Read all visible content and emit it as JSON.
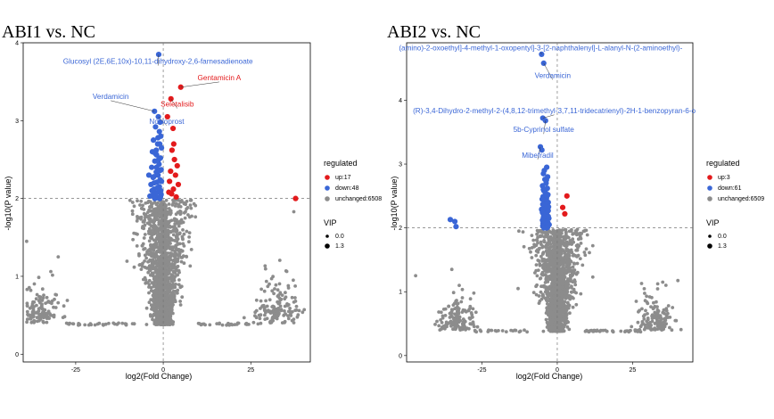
{
  "colors": {
    "up": "#e31a1c",
    "down": "#3a66d6",
    "unchanged": "#8c8c8c",
    "label_down": "#3a66d6",
    "label_up": "#e31a1c"
  },
  "chart_data": [
    {
      "type": "scatter",
      "title": "ABI1 vs. NC",
      "xlabel": "log2(Fold Change)",
      "ylabel": "-log10(P value)",
      "xlim": [
        -40,
        42
      ],
      "ylim": [
        -0.1,
        4.0
      ],
      "x_ticks": [
        -25,
        0,
        25
      ],
      "y_ticks": [
        0,
        1,
        2,
        3,
        4
      ],
      "threshold_y": 2,
      "threshold_x": 0,
      "legend": {
        "regulated_title": "regulated",
        "entries": [
          {
            "key": "up",
            "label": "up:17"
          },
          {
            "key": "down",
            "label": "down:48"
          },
          {
            "key": "unchanged",
            "label": "unchanged:6508"
          }
        ],
        "vip_title": "VIP",
        "vip_entries": [
          "0.0",
          "1.3"
        ]
      },
      "up_points": [
        [
          5,
          3.43
        ],
        [
          2.2,
          3.28
        ],
        [
          2.8,
          2.9
        ],
        [
          1.2,
          3.05
        ],
        [
          3,
          2.7
        ],
        [
          2.5,
          2.62
        ],
        [
          3.2,
          2.5
        ],
        [
          4,
          2.42
        ],
        [
          2.1,
          2.35
        ],
        [
          3.5,
          2.3
        ],
        [
          1.8,
          2.22
        ],
        [
          4.3,
          2.18
        ],
        [
          2.9,
          2.12
        ],
        [
          1.6,
          2.08
        ],
        [
          3.7,
          2.02
        ],
        [
          37.8,
          2.0
        ],
        [
          2.4,
          2.06
        ]
      ],
      "down_points": [
        [
          -1.3,
          3.85
        ],
        [
          -2.5,
          3.12
        ],
        [
          -1.4,
          3.05
        ],
        [
          -0.9,
          2.98
        ],
        [
          -2.2,
          2.92
        ],
        [
          -1.1,
          2.86
        ],
        [
          -0.7,
          2.8
        ],
        [
          -2.8,
          2.75
        ],
        [
          -1.6,
          2.7
        ],
        [
          -0.5,
          2.65
        ],
        [
          -3.1,
          2.6
        ],
        [
          -1.9,
          2.56
        ],
        [
          -0.8,
          2.52
        ],
        [
          -2.4,
          2.48
        ],
        [
          -1.2,
          2.44
        ],
        [
          -3.3,
          2.4
        ],
        [
          -0.6,
          2.37
        ],
        [
          -2.0,
          2.34
        ],
        [
          -1.5,
          2.3
        ],
        [
          -2.9,
          2.27
        ],
        [
          -0.9,
          2.24
        ],
        [
          -1.8,
          2.21
        ],
        [
          -3.5,
          2.18
        ],
        [
          -1.1,
          2.15
        ],
        [
          -2.6,
          2.12
        ],
        [
          -0.7,
          2.1
        ],
        [
          -1.4,
          2.08
        ],
        [
          -2.2,
          2.06
        ],
        [
          -3.0,
          2.04
        ],
        [
          -0.8,
          2.02
        ],
        [
          -1.7,
          2.01
        ],
        [
          -2.4,
          2.0
        ],
        [
          -1.0,
          2.0
        ],
        [
          -3.8,
          2.03
        ],
        [
          -0.5,
          2.22
        ],
        [
          -1.3,
          2.5
        ],
        [
          -2.0,
          2.62
        ],
        [
          -2.7,
          2.28
        ],
        [
          -0.9,
          2.36
        ],
        [
          -1.6,
          2.14
        ],
        [
          -3.2,
          2.1
        ],
        [
          -2.3,
          2.58
        ],
        [
          -1.5,
          2.78
        ],
        [
          -1.0,
          2.7
        ],
        [
          -4.1,
          2.3
        ],
        [
          -0.6,
          2.05
        ],
        [
          -1.9,
          2.4
        ],
        [
          -2.6,
          2.2
        ]
      ],
      "labels": [
        {
          "text": "Glucosyl (2E,6E,10x)-10,11-dihydroxy-2,6-farnesadienoate",
          "color": "down",
          "point": [
            -1.3,
            3.85
          ],
          "anchor": [
            -1.5,
            3.73
          ]
        },
        {
          "text": "Gentamicin A",
          "color": "up",
          "point": [
            5,
            3.43
          ],
          "anchor": [
            16,
            3.52
          ]
        },
        {
          "text": "Verdamicin",
          "color": "down",
          "point": [
            -2.5,
            3.12
          ],
          "anchor": [
            -15,
            3.28
          ]
        },
        {
          "text": "Seletalisib",
          "color": "up",
          "point": [
            2.2,
            3.28
          ],
          "anchor": [
            4,
            3.18
          ]
        },
        {
          "text": "Nocloprost",
          "color": "down",
          "point": [
            -1.4,
            3.05
          ],
          "anchor": [
            1,
            2.96
          ]
        }
      ]
    },
    {
      "type": "scatter",
      "title": "ABI2 vs. NC",
      "xlabel": "log2(Fold Change)",
      "ylabel": "-log10(P value)",
      "xlim": [
        -50,
        45
      ],
      "ylim": [
        -0.1,
        4.9
      ],
      "x_ticks": [
        -25,
        0,
        25
      ],
      "y_ticks": [
        0,
        1,
        2,
        3,
        4
      ],
      "threshold_y": 2,
      "threshold_x": 0,
      "legend": {
        "regulated_title": "regulated",
        "entries": [
          {
            "key": "up",
            "label": "up:3"
          },
          {
            "key": "down",
            "label": "down:61"
          },
          {
            "key": "unchanged",
            "label": "unchanged:6509"
          }
        ],
        "vip_title": "VIP",
        "vip_entries": [
          "0.0",
          "1.3"
        ]
      },
      "up_points": [
        [
          3.2,
          2.5
        ],
        [
          1.8,
          2.32
        ],
        [
          2.5,
          2.22
        ]
      ],
      "down_points": [
        [
          -5.2,
          4.72
        ],
        [
          -4.5,
          4.58
        ],
        [
          -4.8,
          3.72
        ],
        [
          -3.9,
          3.68
        ],
        [
          -5.6,
          3.27
        ],
        [
          -5.1,
          3.22
        ],
        [
          -3.5,
          2.95
        ],
        [
          -4.6,
          2.85
        ],
        [
          -3.2,
          2.8
        ],
        [
          -4.1,
          2.76
        ],
        [
          -3.7,
          2.7
        ],
        [
          -4.9,
          2.66
        ],
        [
          -3.3,
          2.62
        ],
        [
          -4.4,
          2.58
        ],
        [
          -3.9,
          2.55
        ],
        [
          -3.1,
          2.52
        ],
        [
          -4.7,
          2.49
        ],
        [
          -3.6,
          2.46
        ],
        [
          -4.2,
          2.43
        ],
        [
          -3.0,
          2.4
        ],
        [
          -4.8,
          2.37
        ],
        [
          -3.4,
          2.35
        ],
        [
          -4.0,
          2.32
        ],
        [
          -3.8,
          2.3
        ],
        [
          -4.5,
          2.28
        ],
        [
          -3.2,
          2.26
        ],
        [
          -4.9,
          2.24
        ],
        [
          -3.6,
          2.22
        ],
        [
          -4.1,
          2.2
        ],
        [
          -3.0,
          2.18
        ],
        [
          -4.6,
          2.16
        ],
        [
          -3.5,
          2.14
        ],
        [
          -4.3,
          2.12
        ],
        [
          -3.9,
          2.1
        ],
        [
          -3.1,
          2.08
        ],
        [
          -4.7,
          2.07
        ],
        [
          -3.7,
          2.06
        ],
        [
          -4.2,
          2.05
        ],
        [
          -3.3,
          2.04
        ],
        [
          -4.8,
          2.03
        ],
        [
          -3.8,
          2.02
        ],
        [
          -4.0,
          2.01
        ],
        [
          -3.5,
          2.0
        ],
        [
          -4.4,
          2.0
        ],
        [
          -3.2,
          2.01
        ],
        [
          -35.5,
          2.13
        ],
        [
          -34.0,
          2.1
        ],
        [
          -33.6,
          2.02
        ],
        [
          -5.0,
          2.45
        ],
        [
          -2.9,
          2.33
        ],
        [
          -3.4,
          2.5
        ],
        [
          -4.6,
          2.6
        ],
        [
          -3.0,
          2.27
        ],
        [
          -4.9,
          2.12
        ],
        [
          -2.8,
          2.15
        ],
        [
          -5.2,
          2.29
        ],
        [
          -3.6,
          2.75
        ],
        [
          -4.3,
          2.9
        ],
        [
          -2.7,
          2.05
        ],
        [
          -3.9,
          2.38
        ],
        [
          -4.5,
          2.19
        ]
      ],
      "labels": [
        {
          "text": "(amino)-2-oxoethyl]-4-methyl-1-oxopentyl]-3-[2-naphthalenyl]-L-alanyl-N-(2-aminoethyl)-",
          "color": "down",
          "point": [
            -5.2,
            4.72
          ],
          "anchor": [
            -5.5,
            4.78
          ]
        },
        {
          "text": "Verdamicin",
          "color": "down",
          "point": [
            -4.5,
            4.58
          ],
          "anchor": [
            -1.5,
            4.35
          ]
        },
        {
          "text": "(R)-3,4-Dihydro-2-methyl-2-(4,8,12-trimethyl-3,7,11-tridecatrienyl)-2H-1-benzopyran-6-o",
          "color": "down",
          "point": [
            -4.8,
            3.72
          ],
          "anchor": [
            -1,
            3.8
          ]
        },
        {
          "text": "5b-Cyprinol sulfate",
          "color": "down",
          "point": [
            -3.9,
            3.68
          ],
          "anchor": [
            -4.5,
            3.5
          ]
        },
        {
          "text": "Mibefradil",
          "color": "down",
          "point": [
            -5.6,
            3.27
          ],
          "anchor": [
            -6.5,
            3.1
          ]
        }
      ]
    }
  ]
}
